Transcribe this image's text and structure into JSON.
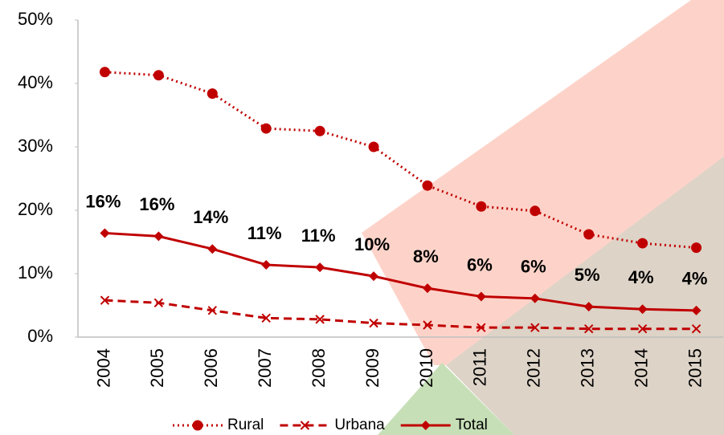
{
  "chart_data": {
    "type": "line",
    "categories": [
      "2004",
      "2005",
      "2006",
      "2007",
      "2008",
      "2009",
      "2010",
      "2011",
      "2012",
      "2013",
      "2014",
      "2015"
    ],
    "series": [
      {
        "name": "Rural",
        "color": "#c00000",
        "line_style": "dotted",
        "marker": "circle",
        "values": [
          41.8,
          41.3,
          38.4,
          32.9,
          32.5,
          30.0,
          23.9,
          20.6,
          19.9,
          16.2,
          14.8,
          14.1
        ]
      },
      {
        "name": "Urbana",
        "color": "#c00000",
        "line_style": "dashed",
        "marker": "x",
        "values": [
          5.8,
          5.4,
          4.2,
          3.0,
          2.8,
          2.2,
          1.9,
          1.5,
          1.5,
          1.3,
          1.3,
          1.3
        ]
      },
      {
        "name": "Total",
        "color": "#c00000",
        "line_style": "solid",
        "marker": "diamond",
        "values": [
          16.4,
          15.9,
          13.9,
          11.4,
          11.0,
          9.6,
          7.7,
          6.4,
          6.1,
          4.8,
          4.4,
          4.2
        ],
        "value_labels": [
          "16%",
          "16%",
          "14%",
          "11%",
          "11%",
          "10%",
          "8%",
          "6%",
          "6%",
          "5%",
          "4%",
          "4%"
        ]
      }
    ],
    "ylim": [
      0,
      50
    ],
    "yticks": [
      {
        "value": 0,
        "label": "0%"
      },
      {
        "value": 10,
        "label": "10%"
      },
      {
        "value": 20,
        "label": "20%"
      },
      {
        "value": 30,
        "label": "30%"
      },
      {
        "value": 40,
        "label": "40%"
      },
      {
        "value": 50,
        "label": "50%"
      }
    ],
    "legend": "bottom"
  }
}
